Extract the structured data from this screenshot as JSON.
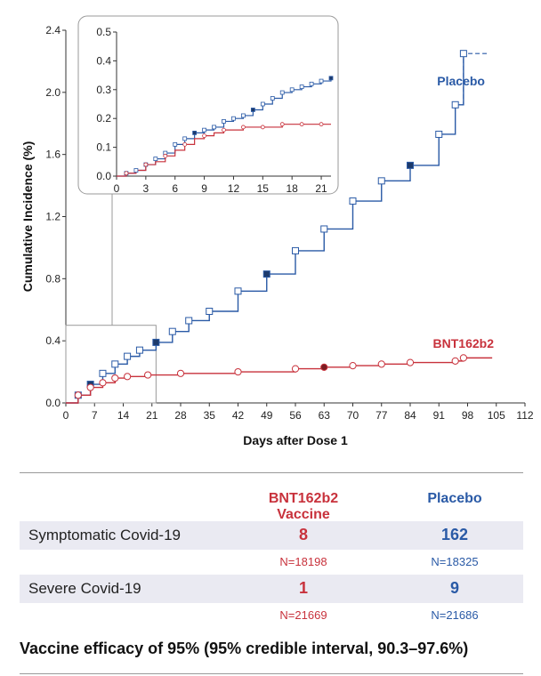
{
  "chart_data": {
    "type": "line",
    "xlabel": "Days after Dose 1",
    "ylabel": "Cumulative Incidence (%)",
    "xlim": [
      0,
      112
    ],
    "ylim": [
      0,
      2.4
    ],
    "xticks": [
      "0",
      "7",
      "14",
      "21",
      "28",
      "35",
      "42",
      "49",
      "56",
      "63",
      "70",
      "77",
      "84",
      "91",
      "98",
      "105",
      "112"
    ],
    "yticks": [
      "0.0",
      "0.4",
      "0.8",
      "1.2",
      "1.6",
      "2.0",
      "2.4"
    ],
    "series": [
      {
        "name": "Placebo",
        "color": "#2a5aa6",
        "marker": "square",
        "x": [
          0,
          3,
          6,
          9,
          12,
          15,
          18,
          22,
          26,
          30,
          35,
          42,
          49,
          56,
          63,
          70,
          77,
          84,
          91,
          95,
          97,
          103
        ],
        "y": [
          0,
          0.05,
          0.12,
          0.19,
          0.25,
          0.3,
          0.34,
          0.39,
          0.46,
          0.53,
          0.59,
          0.72,
          0.83,
          0.98,
          1.12,
          1.3,
          1.43,
          1.53,
          1.73,
          1.92,
          2.25,
          2.25
        ]
      },
      {
        "name": "BNT162b2",
        "color": "#c8323c",
        "marker": "circle",
        "x": [
          0,
          3,
          6,
          9,
          12,
          15,
          20,
          28,
          42,
          56,
          63,
          70,
          77,
          84,
          95,
          97,
          104
        ],
        "y": [
          0,
          0.05,
          0.1,
          0.13,
          0.16,
          0.17,
          0.18,
          0.19,
          0.2,
          0.22,
          0.23,
          0.24,
          0.25,
          0.26,
          0.27,
          0.29,
          0.29
        ]
      }
    ],
    "inset": {
      "xlim": [
        0,
        22
      ],
      "ylim": [
        0,
        0.5
      ],
      "xticks": [
        "0",
        "3",
        "6",
        "9",
        "12",
        "15",
        "18",
        "21"
      ],
      "yticks": [
        "0.0",
        "0.1",
        "0.2",
        "0.3",
        "0.4",
        "0.5"
      ],
      "series": [
        {
          "name": "Placebo",
          "x": [
            0,
            1,
            2,
            3,
            4,
            5,
            6,
            7,
            8,
            9,
            10,
            11,
            12,
            13,
            14,
            15,
            16,
            17,
            18,
            19,
            20,
            21,
            22
          ],
          "y": [
            0,
            0.01,
            0.02,
            0.04,
            0.06,
            0.08,
            0.11,
            0.13,
            0.15,
            0.16,
            0.17,
            0.19,
            0.2,
            0.21,
            0.23,
            0.25,
            0.27,
            0.29,
            0.3,
            0.31,
            0.32,
            0.33,
            0.34
          ]
        },
        {
          "name": "BNT162b2",
          "x": [
            0,
            1,
            2,
            3,
            4,
            5,
            6,
            7,
            8,
            9,
            10,
            11,
            12,
            13,
            14,
            15,
            16,
            17,
            18,
            19,
            20,
            21,
            22
          ],
          "y": [
            0,
            0.01,
            0.02,
            0.04,
            0.05,
            0.07,
            0.09,
            0.11,
            0.13,
            0.14,
            0.15,
            0.16,
            0.16,
            0.17,
            0.17,
            0.17,
            0.17,
            0.18,
            0.18,
            0.18,
            0.18,
            0.18,
            0.18
          ]
        }
      ]
    }
  },
  "table": {
    "headers": {
      "vaccine": "BNT162b2 Vaccine",
      "placebo": "Placebo"
    },
    "rows": [
      {
        "label": "Symptomatic Covid-19",
        "vaccine": "8",
        "placebo": "162",
        "vaccine_n": "N=18198",
        "placebo_n": "N=18325"
      },
      {
        "label": "Severe Covid-19",
        "vaccine": "1",
        "placebo": "9",
        "vaccine_n": "N=21669",
        "placebo_n": "N=21686"
      }
    ]
  },
  "efficacy": "Vaccine efficacy of 95% (95% credible interval, 90.3–97.6%)",
  "colors": {
    "vaccine": "#c8323c",
    "placebo": "#2a5aa6"
  }
}
